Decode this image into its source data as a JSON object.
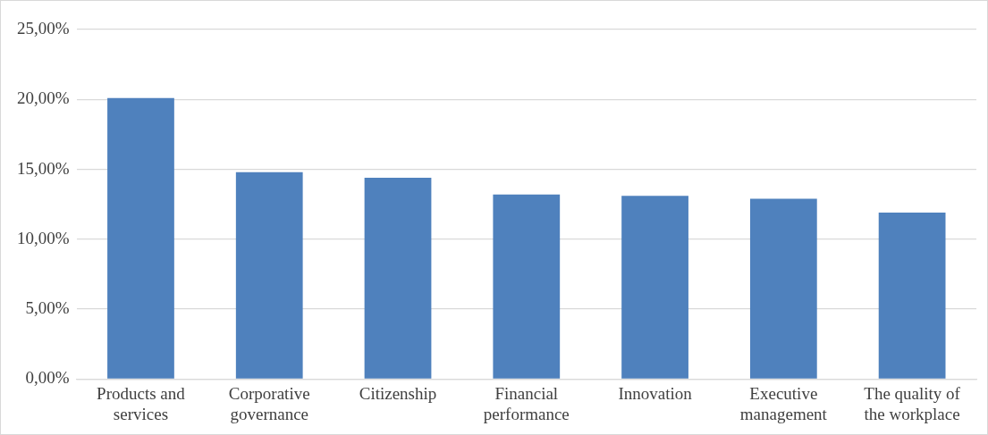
{
  "chart_data": {
    "type": "bar",
    "categories": [
      "Products and services",
      "Corporative governance",
      "Citizenship",
      "Financial performance",
      "Innovation",
      "Executive management",
      "The quality of the workplace"
    ],
    "values": [
      20.1,
      14.8,
      14.4,
      13.2,
      13.1,
      12.9,
      11.9
    ],
    "color": "#4f81bd",
    "ylim": [
      0,
      25
    ],
    "yticks": [
      {
        "value": 0,
        "label": "0,00%"
      },
      {
        "value": 5,
        "label": "5,00%"
      },
      {
        "value": 10,
        "label": "10,00%"
      },
      {
        "value": 15,
        "label": "15,00%"
      },
      {
        "value": 20,
        "label": "20,00%"
      },
      {
        "value": 25,
        "label": "25,00%"
      }
    ],
    "grid": "y",
    "legend": false
  }
}
